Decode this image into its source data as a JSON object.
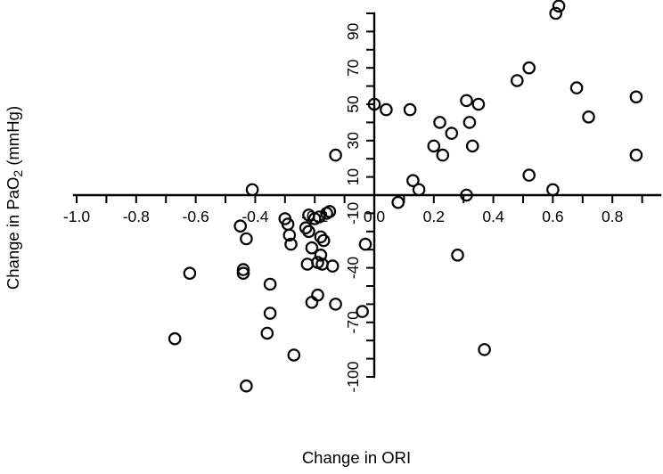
{
  "chart_data": {
    "type": "scatter",
    "title": "",
    "xlabel": "Change in ORI",
    "ylabel": "Change in PaO₂ (mmHg)",
    "ylabel_parts": {
      "pre": "Change in PaO",
      "sub": "2",
      "post": " (mmHg)"
    },
    "xlim": [
      -1.05,
      0.97
    ],
    "ylim": [
      -105,
      105
    ],
    "grid": false,
    "legend": "none",
    "marker": {
      "shape": "open-circle",
      "color": "#000000"
    },
    "x_axis": {
      "tick_step": 0.1,
      "tick_min": -1.0,
      "tick_max": 0.9,
      "labels": [
        {
          "value": -1.0,
          "text": "-1.0"
        },
        {
          "value": -0.8,
          "text": "-0.8"
        },
        {
          "value": -0.6,
          "text": "-0.6"
        },
        {
          "value": -0.4,
          "text": "-0.4"
        },
        {
          "value": -0.2,
          "text": "-0.2"
        },
        {
          "value": 0.0,
          "text": "0.0"
        },
        {
          "value": 0.2,
          "text": "0.2"
        },
        {
          "value": 0.4,
          "text": "0.4"
        },
        {
          "value": 0.6,
          "text": "0.6"
        },
        {
          "value": 0.8,
          "text": "0.8"
        }
      ]
    },
    "y_axis": {
      "tick_step": 10,
      "tick_min": -100,
      "tick_max": 100,
      "labels": [
        {
          "value": 90,
          "text": "90"
        },
        {
          "value": 70,
          "text": "70"
        },
        {
          "value": 50,
          "text": "50"
        },
        {
          "value": 30,
          "text": "30"
        },
        {
          "value": 10,
          "text": "10"
        },
        {
          "value": -10,
          "text": "-10"
        },
        {
          "value": -40,
          "text": "-40"
        },
        {
          "value": -70,
          "text": "-70"
        },
        {
          "value": -100,
          "text": "-100"
        }
      ]
    },
    "points": [
      [
        0.62,
        104
      ],
      [
        0.61,
        100
      ],
      [
        0.52,
        70
      ],
      [
        0.48,
        63
      ],
      [
        0.68,
        59
      ],
      [
        0.88,
        54
      ],
      [
        0.31,
        52
      ],
      [
        0.35,
        50
      ],
      [
        0.0,
        50
      ],
      [
        0.04,
        47
      ],
      [
        0.12,
        47
      ],
      [
        0.72,
        43
      ],
      [
        0.22,
        40
      ],
      [
        0.32,
        40
      ],
      [
        0.26,
        34
      ],
      [
        0.2,
        27
      ],
      [
        0.33,
        27
      ],
      [
        0.23,
        22
      ],
      [
        0.88,
        22
      ],
      [
        -0.13,
        22
      ],
      [
        0.52,
        11
      ],
      [
        0.13,
        8
      ],
      [
        -0.41,
        3
      ],
      [
        0.15,
        3
      ],
      [
        0.6,
        3
      ],
      [
        0.31,
        0
      ],
      [
        0.08,
        -4
      ],
      [
        -0.15,
        -9
      ],
      [
        -0.16,
        -10
      ],
      [
        -0.22,
        -11
      ],
      [
        -0.185,
        -12
      ],
      [
        -0.2,
        -13
      ],
      [
        -0.3,
        -13
      ],
      [
        -0.29,
        -16
      ],
      [
        -0.45,
        -17
      ],
      [
        -0.23,
        -18
      ],
      [
        -0.22,
        -20
      ],
      [
        -0.285,
        -22
      ],
      [
        -0.18,
        -23
      ],
      [
        -0.43,
        -24
      ],
      [
        -0.17,
        -25
      ],
      [
        -0.28,
        -27
      ],
      [
        -0.03,
        -27
      ],
      [
        -0.21,
        -29
      ],
      [
        0.28,
        -33
      ],
      [
        -0.18,
        -33
      ],
      [
        -0.19,
        -37
      ],
      [
        -0.175,
        -38
      ],
      [
        -0.225,
        -38
      ],
      [
        -0.14,
        -39
      ],
      [
        -0.44,
        -41
      ],
      [
        -0.62,
        -43
      ],
      [
        -0.44,
        -43
      ],
      [
        -0.35,
        -49
      ],
      [
        -0.19,
        -55
      ],
      [
        -0.21,
        -59
      ],
      [
        -0.13,
        -60
      ],
      [
        -0.04,
        -64
      ],
      [
        -0.35,
        -65
      ],
      [
        -0.36,
        -76
      ],
      [
        -0.67,
        -79
      ],
      [
        0.37,
        -85
      ],
      [
        -0.27,
        -88
      ],
      [
        -0.43,
        -105
      ]
    ]
  },
  "colors": {
    "foreground": "#000000",
    "background": "#ffffff"
  }
}
